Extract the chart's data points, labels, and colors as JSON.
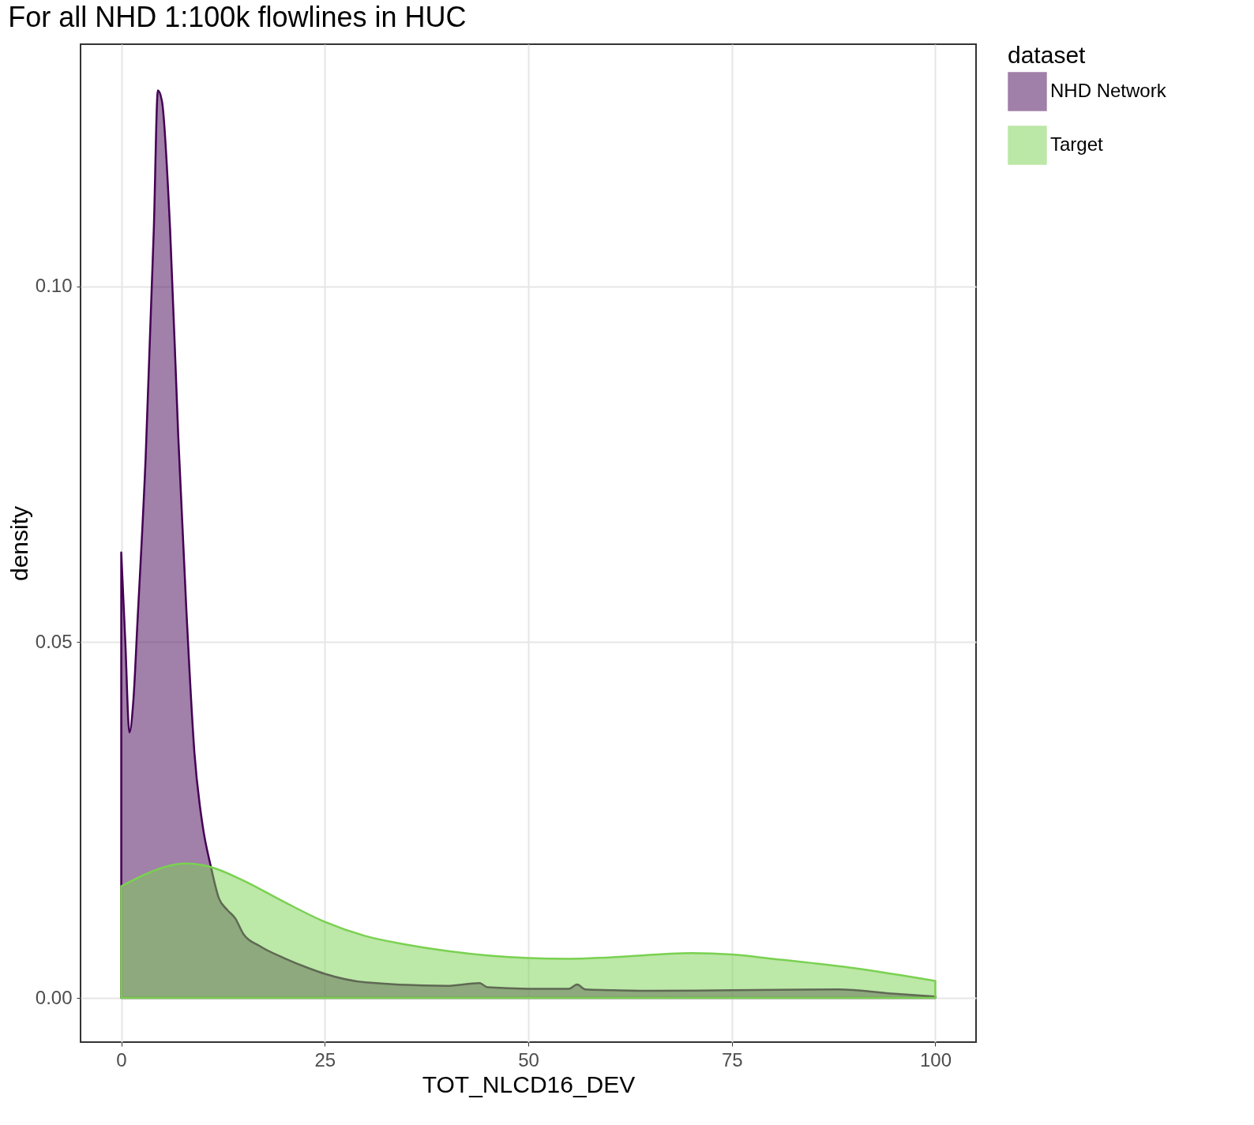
{
  "chart_data": {
    "type": "area",
    "title": "For all NHD 1:100k flowlines in HUC",
    "xlabel": "TOT_NLCD16_DEV",
    "ylabel": "density",
    "legend_title": "dataset",
    "legend": "right",
    "grid": true,
    "xlim": [
      -5,
      105
    ],
    "xticks": [
      0,
      25,
      50,
      75,
      100
    ],
    "ylim": [
      -0.0062,
      0.134
    ],
    "yticks": [
      {
        "value": 0,
        "label": "0.00"
      },
      {
        "value": 0.05,
        "label": "0.05"
      },
      {
        "value": 0.1,
        "label": "0.10"
      }
    ],
    "series": [
      {
        "name": "NHD Network",
        "color": "#440154",
        "x": [
          0,
          0.5,
          1,
          1.5,
          2,
          3,
          4,
          4.5,
          5,
          6,
          7,
          8,
          9,
          10,
          11,
          12,
          13,
          14,
          15,
          17,
          20,
          23,
          25,
          30,
          40,
          44,
          45,
          50,
          55,
          56,
          57,
          60,
          65,
          75,
          88,
          95,
          100
        ],
        "values": [
          0.0626,
          0.05,
          0.0373,
          0.042,
          0.053,
          0.076,
          0.108,
          0.1275,
          0.126,
          0.108,
          0.079,
          0.0545,
          0.0343,
          0.0242,
          0.0185,
          0.014,
          0.0124,
          0.0112,
          0.009,
          0.0073,
          0.0056,
          0.0042,
          0.0034,
          0.0022,
          0.0017,
          0.0021,
          0.0015,
          0.0013,
          0.0013,
          0.0019,
          0.0012,
          0.0011,
          0.001,
          0.0011,
          0.0012,
          0.0006,
          0.0002
        ]
      },
      {
        "name": "Target",
        "color": "#7ad151",
        "x": [
          0,
          3,
          5,
          8,
          11,
          15,
          20,
          25,
          30,
          35,
          40,
          50,
          55,
          60,
          70,
          75,
          80,
          90,
          100
        ],
        "values": [
          0.0157,
          0.0174,
          0.0183,
          0.0189,
          0.0184,
          0.0165,
          0.0135,
          0.0107,
          0.0087,
          0.0075,
          0.0066,
          0.0056,
          0.0055,
          0.0057,
          0.0063,
          0.0061,
          0.0055,
          0.0042,
          0.0024
        ]
      }
    ]
  }
}
